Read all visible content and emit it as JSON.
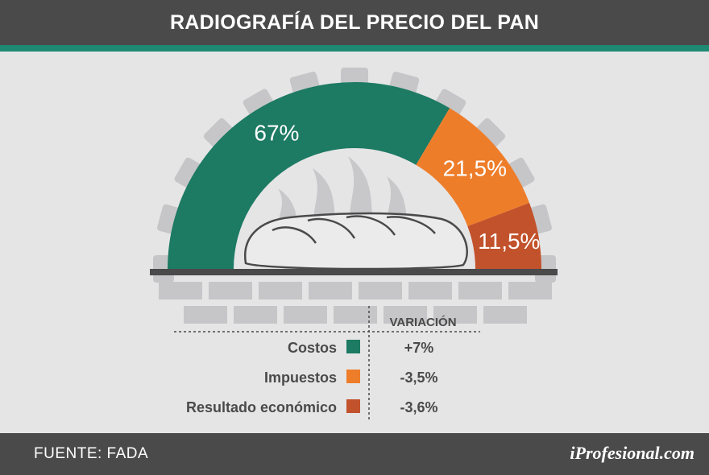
{
  "header": {
    "title": "RADIOGRAFÍA DEL PRECIO DEL PAN"
  },
  "footer": {
    "source": "FUENTE: FADA",
    "brand": "iProfesional.com"
  },
  "colors": {
    "costos": "#1d7a63",
    "impuestos": "#ee7d2a",
    "resultado": "#c2522b",
    "dark": "#4a4a4b",
    "accent_stripe": "#1f8a74",
    "brick": "#c6c6c8"
  },
  "chart_data": {
    "type": "pie",
    "shape": "semicircle",
    "title": "RADIOGRAFÍA DEL PRECIO DEL PAN",
    "slices": [
      {
        "name": "Costos",
        "value": 67,
        "label": "67%",
        "variacion": "+7%",
        "color": "#1d7a63"
      },
      {
        "name": "Impuestos",
        "value": 21.5,
        "label": "21,5%",
        "variacion": "-3,5%",
        "color": "#ee7d2a"
      },
      {
        "name": "Resultado económico",
        "value": 11.5,
        "label": "11,5%",
        "variacion": "-3,6%",
        "color": "#c2522b"
      }
    ],
    "legend_header": "VARIACIÓN",
    "legend_placement": "bottom"
  }
}
